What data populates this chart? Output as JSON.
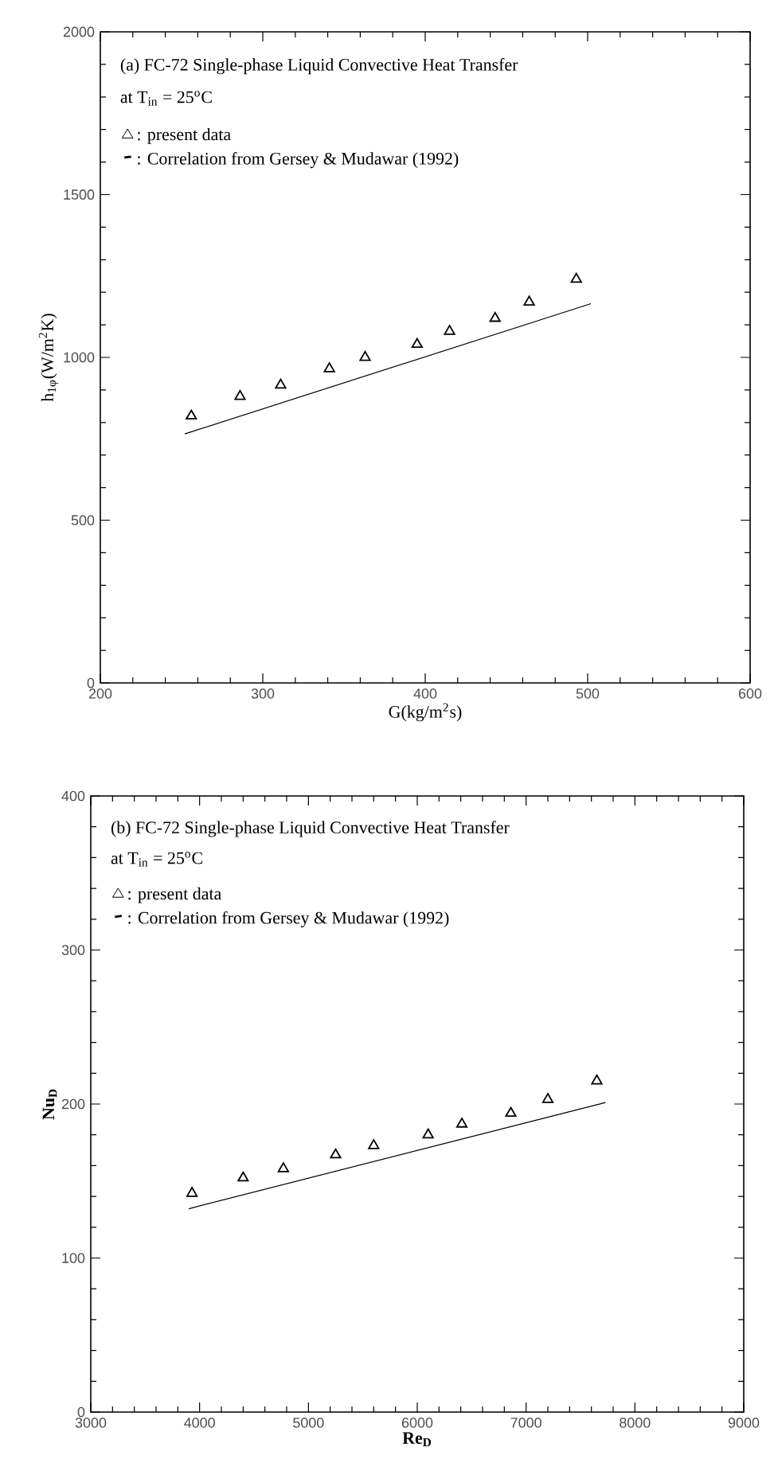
{
  "chart_data": [
    {
      "type": "scatter",
      "title": "(a) FC-72 Single-phase Liquid Convective Heat Transfer",
      "subtitle": "at T$_{in}$ = 25$^{o}$C",
      "xlabel": "G(kg/m$^{2}$s)",
      "ylabel": "h$_{1φ}$(W/m$^{2}$K)",
      "xlim": [
        200,
        600
      ],
      "ylim": [
        0,
        2000
      ],
      "xticks": [
        200,
        300,
        400,
        500,
        600
      ],
      "yticks": [
        0,
        500,
        1000,
        1500,
        2000
      ],
      "legend": "top left",
      "series": [
        {
          "name": ": present data",
          "type": "scatter",
          "marker": "triangle",
          "color": "#000000",
          "x": [
            256,
            286,
            311,
            341,
            363,
            395,
            415,
            443,
            464,
            493
          ],
          "values": [
            820,
            880,
            915,
            965,
            1000,
            1040,
            1080,
            1120,
            1170,
            1240
          ]
        },
        {
          "name": ": Correlation from Gersey & Mudawar (1992)",
          "type": "line",
          "marker": "none",
          "line_style": "solid",
          "color": "#000000",
          "x": [
            252,
            502
          ],
          "values": [
            765,
            1165
          ]
        }
      ]
    },
    {
      "type": "scatter",
      "title": "(b) FC-72 Single-phase Liquid Convective Heat Transfer",
      "subtitle": "at T$_{in}$ = 25$^{o}$C",
      "xlabel": "Re$_{D}$",
      "ylabel": "Nu$_{D}$",
      "xlim": [
        3000,
        9000
      ],
      "ylim": [
        0,
        400
      ],
      "xticks": [
        3000,
        4000,
        5000,
        6000,
        7000,
        8000,
        9000
      ],
      "yticks": [
        0,
        100,
        200,
        300,
        400
      ],
      "legend": "top left",
      "series": [
        {
          "name": ": present data",
          "type": "scatter",
          "marker": "triangle",
          "color": "#000000",
          "x": [
            3930,
            4400,
            4770,
            5250,
            5600,
            6100,
            6410,
            6860,
            7200,
            7650
          ],
          "values": [
            142,
            152,
            158,
            167,
            173,
            180,
            187,
            194,
            203,
            215
          ]
        },
        {
          "name": ": Correlation from Gersey & Mudawar (1992)",
          "type": "line",
          "marker": "none",
          "line_style": "solid",
          "color": "#000000",
          "x": [
            3900,
            7730
          ],
          "values": [
            132,
            201
          ]
        }
      ]
    }
  ]
}
